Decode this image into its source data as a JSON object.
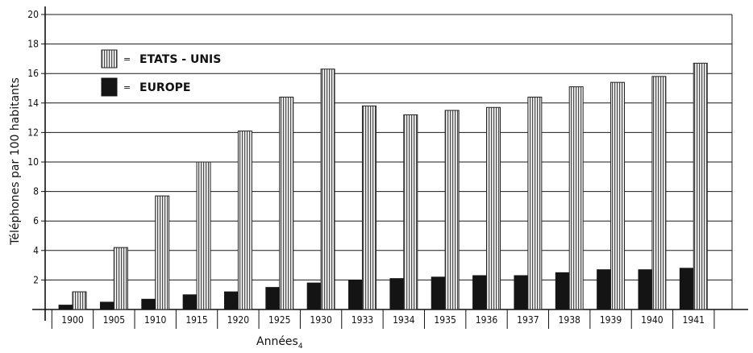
{
  "chart_data": {
    "type": "bar",
    "categories": [
      "1900",
      "1905",
      "1910",
      "1915",
      "1920",
      "1925",
      "1930",
      "1933",
      "1934",
      "1935",
      "1936",
      "1937",
      "1938",
      "1939",
      "1940",
      "1941"
    ],
    "series": [
      {
        "name": "EUROPE",
        "values": [
          0.3,
          0.5,
          0.7,
          1.0,
          1.2,
          1.5,
          1.8,
          2.0,
          2.1,
          2.2,
          2.3,
          2.3,
          2.5,
          2.7,
          2.7,
          2.8
        ],
        "color": "#141414",
        "pattern": "solid"
      },
      {
        "name": "ETATS - UNIS",
        "values": [
          1.2,
          4.2,
          7.7,
          10.0,
          12.1,
          14.4,
          16.3,
          13.8,
          13.2,
          13.5,
          13.7,
          14.4,
          15.1,
          15.4,
          15.8,
          16.7
        ],
        "color": "#bdbdbd",
        "pattern": "vertical-hatch"
      }
    ],
    "title": "",
    "xlabel": "Années",
    "xlabel_suffix": "4",
    "ylabel": "Téléphones par 100 habitants",
    "ylim": [
      0,
      20
    ],
    "yticks": [
      2,
      4,
      6,
      8,
      10,
      12,
      14,
      16,
      18,
      20
    ],
    "grid": true,
    "legend": {
      "position": "top-left",
      "equals_sign": "=",
      "entries": [
        "ETATS - UNIS",
        "EUROPE"
      ]
    }
  }
}
